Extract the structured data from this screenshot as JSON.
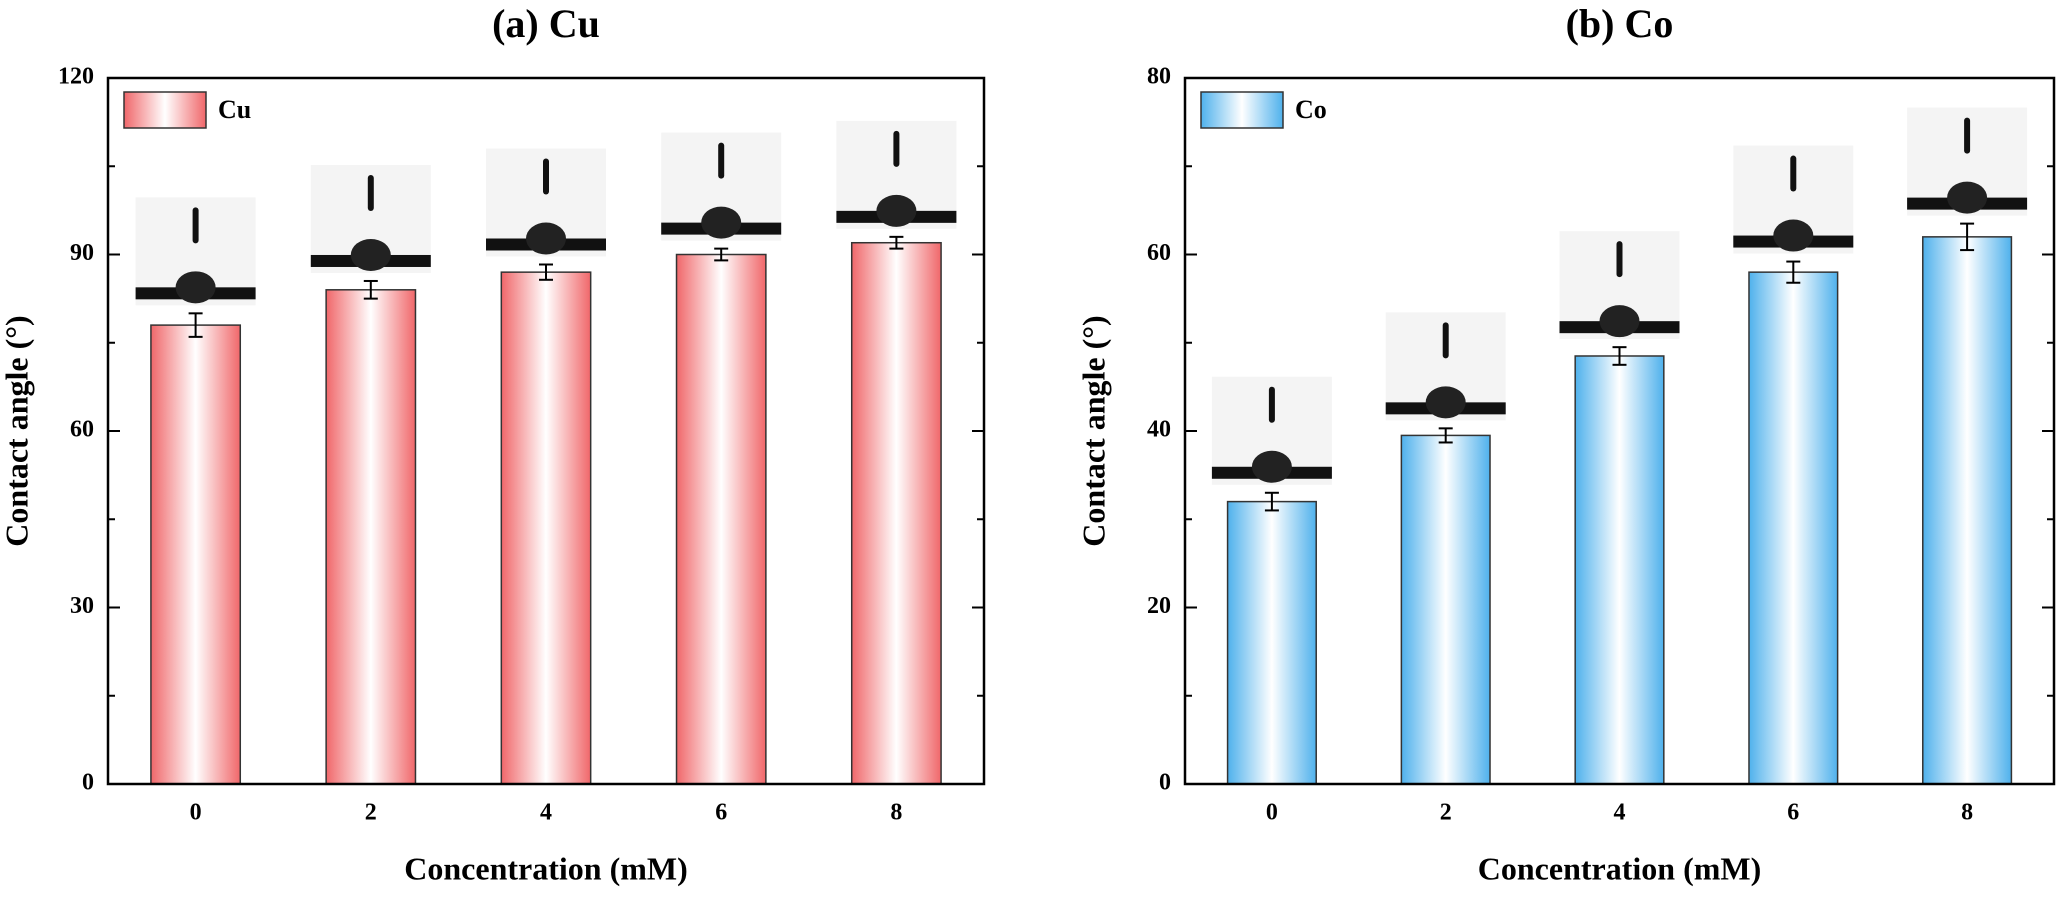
{
  "chart_data": [
    {
      "type": "bar",
      "title": "(a) Cu",
      "xlabel": "Concentration (mM)",
      "ylabel": "Contact angle (°)",
      "categories": [
        "0",
        "2",
        "4",
        "6",
        "8"
      ],
      "series": [
        {
          "name": "Cu",
          "color": "#f0676a",
          "values": [
            78,
            84,
            87,
            90,
            92
          ],
          "errors": [
            2,
            1.5,
            1.3,
            1,
            1
          ]
        }
      ],
      "ylim": [
        0,
        120
      ],
      "yticks": [
        0,
        30,
        60,
        90,
        120
      ],
      "legend": "upper left"
    },
    {
      "type": "bar",
      "title": "(b) Co",
      "xlabel": "Concentration (mM)",
      "ylabel": "Contact angle (°)",
      "categories": [
        "0",
        "2",
        "4",
        "6",
        "8"
      ],
      "series": [
        {
          "name": "Co",
          "color": "#4fb1ec",
          "values": [
            32,
            39.5,
            48.5,
            58,
            62
          ],
          "errors": [
            1,
            0.8,
            1,
            1.2,
            1.5
          ]
        }
      ],
      "ylim": [
        0,
        80
      ],
      "yticks": [
        0,
        20,
        40,
        60,
        80
      ],
      "legend": "upper left"
    }
  ]
}
